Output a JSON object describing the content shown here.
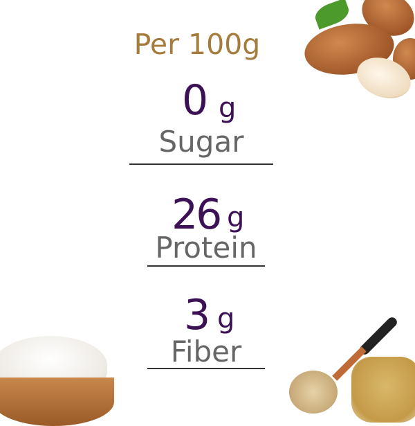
{
  "heading": "Per 100g",
  "nutrients": [
    {
      "value": "0",
      "unit": "g",
      "label": "Sugar"
    },
    {
      "value": "26",
      "unit": "g",
      "label": "Protein"
    },
    {
      "value": "3",
      "unit": "g",
      "label": "Fiber"
    }
  ],
  "colors": {
    "heading": "#a67c3c",
    "value": "#3d1155",
    "label": "#666666"
  },
  "images": [
    "almonds",
    "coconut-flour-bowl",
    "wooden-spoon-with-seeds-and-nut-butter-jar"
  ]
}
